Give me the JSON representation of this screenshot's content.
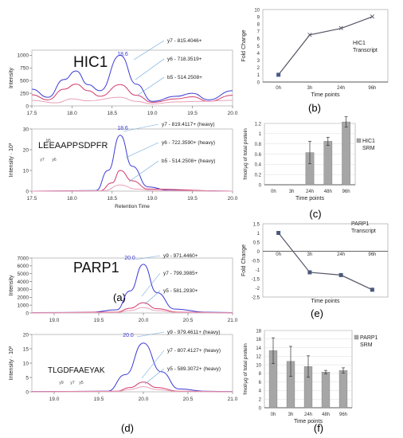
{
  "panel_labels": {
    "a": "(a)",
    "b": "(b)",
    "c": "(c)",
    "d": "(d)",
    "e": "(e)",
    "f": "(f)"
  },
  "chart_data": [
    {
      "id": "a_top",
      "type": "line",
      "title": "HIC1",
      "ylabel": "Intensity",
      "xlim": [
        17.5,
        20.0
      ],
      "ylim": [
        0,
        1100
      ],
      "x_ticks": [
        17.5,
        18.0,
        18.5,
        19.0,
        19.5,
        20.0
      ],
      "y_ticks": [
        0,
        250,
        500,
        750,
        1000
      ],
      "peak_label": "18.6",
      "series": [
        {
          "name": "y7 - 815.4046+",
          "color": "#3b3bd6",
          "points": [
            [
              17.5,
              330
            ],
            [
              17.7,
              170
            ],
            [
              17.9,
              520
            ],
            [
              18.05,
              690
            ],
            [
              18.2,
              420
            ],
            [
              18.35,
              300
            ],
            [
              18.6,
              1000
            ],
            [
              18.8,
              430
            ],
            [
              19.0,
              90
            ],
            [
              19.3,
              190
            ],
            [
              19.5,
              250
            ],
            [
              19.7,
              120
            ],
            [
              20.0,
              300
            ]
          ]
        },
        {
          "name": "y6 - 718.3519+",
          "color": "#d23c6a",
          "points": [
            [
              17.5,
              220
            ],
            [
              17.7,
              120
            ],
            [
              17.9,
              330
            ],
            [
              18.05,
              430
            ],
            [
              18.2,
              300
            ],
            [
              18.35,
              190
            ],
            [
              18.6,
              420
            ],
            [
              18.8,
              210
            ],
            [
              19.0,
              70
            ],
            [
              19.3,
              140
            ],
            [
              19.5,
              180
            ],
            [
              19.7,
              90
            ],
            [
              20.0,
              210
            ]
          ]
        },
        {
          "name": "b5 - 514.2508+",
          "color": "#e8a0b8",
          "points": [
            [
              17.5,
              110
            ],
            [
              17.8,
              60
            ],
            [
              18.0,
              140
            ],
            [
              18.2,
              100
            ],
            [
              18.6,
              170
            ],
            [
              18.8,
              90
            ],
            [
              19.0,
              40
            ],
            [
              19.3,
              80
            ],
            [
              19.6,
              90
            ],
            [
              20.0,
              110
            ]
          ]
        }
      ]
    },
    {
      "id": "a_bottom",
      "type": "line",
      "title": "LEEAAPPSDPFR",
      "xlabel": "Retention Time",
      "ylabel": "Intensity · 10³",
      "xlim": [
        17.5,
        20.0
      ],
      "ylim": [
        0,
        30
      ],
      "x_ticks": [
        17.5,
        18.0,
        18.5,
        19.0,
        19.5,
        20.0
      ],
      "y_ticks": [
        0,
        10,
        20,
        30
      ],
      "peak_label": "18.6",
      "fragment_labels": [
        "b5",
        "y7",
        "y6"
      ],
      "series": [
        {
          "name": "y7 - 819.4117+ (heavy)",
          "color": "#3b3bd6",
          "points": [
            [
              17.5,
              0
            ],
            [
              18.3,
              0.3
            ],
            [
              18.45,
              10
            ],
            [
              18.6,
              27
            ],
            [
              18.75,
              12
            ],
            [
              18.95,
              2
            ],
            [
              19.2,
              0.5
            ],
            [
              20.0,
              0
            ]
          ]
        },
        {
          "name": "y6 - 722.3590+ (heavy)",
          "color": "#d23c6a",
          "points": [
            [
              17.5,
              0
            ],
            [
              18.35,
              0.2
            ],
            [
              18.5,
              4
            ],
            [
              18.6,
              10
            ],
            [
              18.75,
              5
            ],
            [
              18.95,
              1
            ],
            [
              20.0,
              0
            ]
          ]
        },
        {
          "name": "b5 - 514.2508+ (heavy)",
          "color": "#e8a0b8",
          "points": [
            [
              17.5,
              0
            ],
            [
              18.4,
              0.2
            ],
            [
              18.6,
              3
            ],
            [
              18.8,
              1
            ],
            [
              19.0,
              0.3
            ],
            [
              20.0,
              0
            ]
          ]
        }
      ]
    },
    {
      "id": "b",
      "type": "line",
      "ylabel": "Fold Change",
      "xlabel": "Time points",
      "categories": [
        "0h",
        "3h",
        "24h",
        "96h"
      ],
      "ylim": [
        0,
        10
      ],
      "y_ticks": [
        0,
        1,
        2,
        3,
        4,
        5,
        6,
        7,
        8,
        9,
        10
      ],
      "legend": "HIC1 Transcript",
      "values": [
        1.0,
        6.5,
        7.4,
        9.0
      ],
      "color": "#555566"
    },
    {
      "id": "c",
      "type": "bar",
      "ylabel": "fmol/µg of total protein",
      "xlabel": "Time points",
      "categories": [
        "0h",
        "3h",
        "24h",
        "48h",
        "96h"
      ],
      "ylim": [
        0,
        1.2
      ],
      "y_ticks": [
        "0",
        "0.2",
        "0.4",
        "0.6",
        "0.8",
        "1",
        "1.2"
      ],
      "legend": "HIC1 SRM",
      "values": [
        0,
        0,
        0.63,
        0.85,
        1.23
      ],
      "errors": [
        0,
        0,
        0.22,
        0.08,
        0.1
      ],
      "color": "#a6a6a6"
    },
    {
      "id": "d_top",
      "type": "line",
      "title": "PARP1",
      "ylabel": "Intensity",
      "xlim": [
        18.75,
        21.0
      ],
      "ylim": [
        0,
        7000
      ],
      "x_ticks": [
        19.0,
        19.5,
        20.0,
        20.5,
        21.0
      ],
      "y_ticks": [
        0,
        1000,
        2000,
        3000,
        4000,
        5000,
        6000,
        7000
      ],
      "peak_label": "20.0",
      "series": [
        {
          "name": "y9 - 971.4460+",
          "color": "#3b3bd6",
          "points": [
            [
              18.75,
              50
            ],
            [
              19.4,
              80
            ],
            [
              19.7,
              400
            ],
            [
              19.85,
              2800
            ],
            [
              20.0,
              6200
            ],
            [
              20.15,
              2600
            ],
            [
              20.35,
              500
            ],
            [
              20.7,
              100
            ],
            [
              21.0,
              50
            ]
          ]
        },
        {
          "name": "y7 - 799.3985+",
          "color": "#d23c6a",
          "points": [
            [
              18.75,
              30
            ],
            [
              19.7,
              100
            ],
            [
              19.85,
              600
            ],
            [
              20.0,
              1300
            ],
            [
              20.15,
              550
            ],
            [
              20.4,
              100
            ],
            [
              21.0,
              30
            ]
          ]
        },
        {
          "name": "y5 - 581.2930+",
          "color": "#e8a0b8",
          "points": [
            [
              18.75,
              20
            ],
            [
              19.7,
              60
            ],
            [
              19.85,
              300
            ],
            [
              20.0,
              700
            ],
            [
              20.15,
              300
            ],
            [
              20.4,
              60
            ],
            [
              21.0,
              20
            ]
          ]
        }
      ]
    },
    {
      "id": "d_bottom",
      "type": "line",
      "title": "TLGDFAAEYAK",
      "ylabel": "Intensity · 10³",
      "xlim": [
        18.75,
        21.0
      ],
      "ylim": [
        0,
        20
      ],
      "x_ticks": [
        19.0,
        19.5,
        20.0,
        20.5,
        21.0
      ],
      "y_ticks": [
        0,
        5,
        10,
        15,
        20
      ],
      "peak_label": "20.0",
      "fragment_labels": [
        "y9",
        "y7",
        "y5"
      ],
      "series": [
        {
          "name": "y9 - 979.4611+ (heavy)",
          "color": "#3b3bd6",
          "points": [
            [
              18.75,
              0.1
            ],
            [
              19.6,
              0.2
            ],
            [
              19.8,
              6
            ],
            [
              20.0,
              17
            ],
            [
              20.2,
              7
            ],
            [
              20.4,
              1
            ],
            [
              20.7,
              0.2
            ],
            [
              21.0,
              0.1
            ]
          ]
        },
        {
          "name": "y7 - 807.4127+ (heavy)",
          "color": "#d23c6a",
          "points": [
            [
              18.75,
              0.05
            ],
            [
              19.7,
              0.2
            ],
            [
              19.85,
              1.5
            ],
            [
              20.0,
              3.4
            ],
            [
              20.15,
              1.5
            ],
            [
              20.4,
              0.2
            ],
            [
              21.0,
              0.05
            ]
          ]
        },
        {
          "name": "y5 - 589.3072+ (heavy)",
          "color": "#e8a0b8",
          "points": [
            [
              18.75,
              0.03
            ],
            [
              19.7,
              0.1
            ],
            [
              19.85,
              0.8
            ],
            [
              20.0,
              1.8
            ],
            [
              20.15,
              0.8
            ],
            [
              20.4,
              0.1
            ],
            [
              21.0,
              0.03
            ]
          ]
        }
      ]
    },
    {
      "id": "e",
      "type": "line",
      "ylabel": "Fold Change",
      "xlabel": "Time points",
      "categories": [
        "0h",
        "3h",
        "24h",
        "96h"
      ],
      "ylim": [
        -2.5,
        1.5
      ],
      "y_ticks": [
        "1.5",
        "1",
        "0.5",
        "0",
        "-0.5",
        "-1",
        "-1.5",
        "-2",
        "-2.5"
      ],
      "legend": "PARP1 Transcript",
      "values": [
        1.0,
        -1.15,
        -1.3,
        -2.1
      ],
      "color": "#555566"
    },
    {
      "id": "f",
      "type": "bar",
      "ylabel": "fmol/µg of total protein",
      "xlabel": "Time points",
      "categories": [
        "0h",
        "3h",
        "24h",
        "48h",
        "96h"
      ],
      "ylim": [
        0,
        18
      ],
      "y_ticks": [
        "0",
        "2",
        "4",
        "6",
        "8",
        "10",
        "12",
        "14",
        "16",
        "18"
      ],
      "legend": "PARP1 SRM",
      "values": [
        13.3,
        10.8,
        9.6,
        8.3,
        8.7
      ],
      "errors": [
        3.0,
        3.5,
        2.5,
        0.4,
        0.6
      ],
      "color": "#a6a6a6"
    }
  ]
}
